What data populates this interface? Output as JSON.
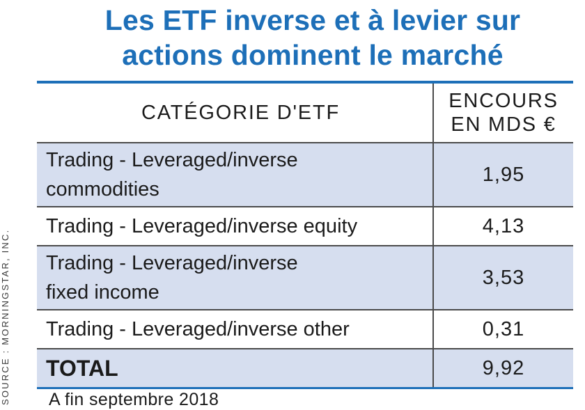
{
  "title_line1": "Les ETF inverse et à levier sur",
  "title_line2": "actions dominent le marché",
  "source": "SOURCE : MORNINGSTAR, INC.",
  "footnote": "A fin septembre 2018",
  "colors": {
    "accent": "#1d6fb8",
    "row_shade": "#d6deef"
  },
  "chart_data": {
    "type": "table",
    "headers": [
      "CATÉGORIE D'ETF",
      "ENCOURS EN MDS €"
    ],
    "header_col2_line1": "ENCOURS",
    "header_col2_line2": "EN MDS €",
    "rows": [
      {
        "line1": "Trading - Leveraged/inverse",
        "line2": "commodities",
        "value": "1,95"
      },
      {
        "line1": "Trading - Leveraged/inverse equity",
        "value": "4,13"
      },
      {
        "line1": "Trading - Leveraged/inverse",
        "line2": "fixed income",
        "value": "3,53"
      },
      {
        "line1": "Trading - Leveraged/inverse other",
        "value": "0,31"
      }
    ],
    "total": {
      "label": "TOTAL",
      "value": "9,92"
    }
  }
}
